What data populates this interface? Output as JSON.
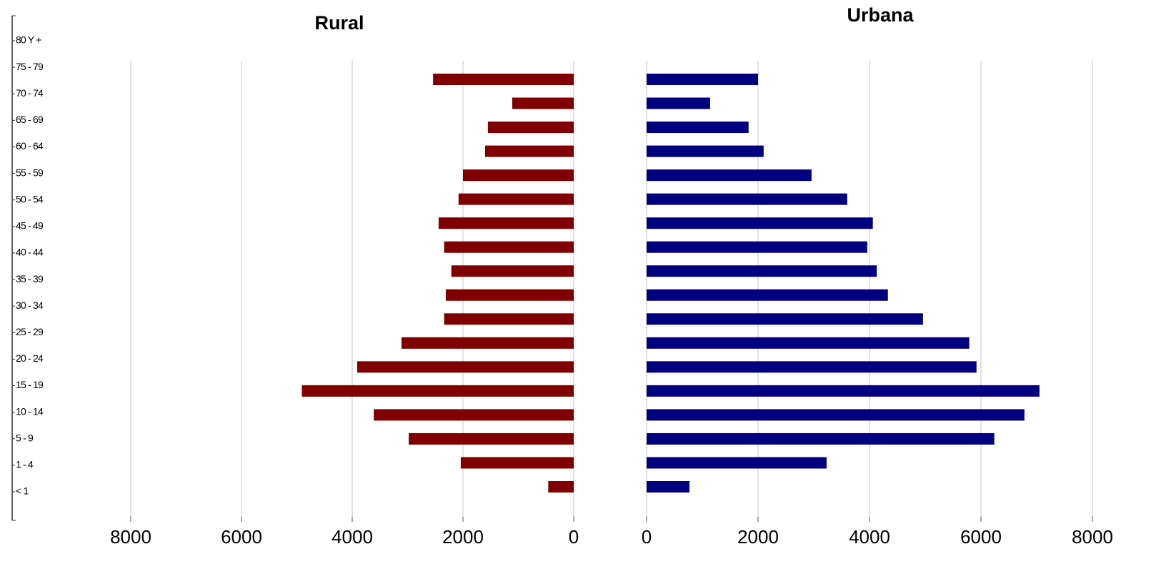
{
  "chart_data": [
    {
      "type": "bar",
      "orientation": "horizontal",
      "title": "Rural",
      "color": "#800000",
      "categories": [
        "80 Y +",
        "75 - 79",
        "70 - 74",
        "65 - 69",
        "60 - 64",
        "55 - 59",
        "50 - 54",
        "45 - 49",
        "40 - 44",
        "35 - 39",
        "30 - 34",
        "25 - 29",
        "20 - 24",
        "15 - 19",
        "10 - 14",
        "5 - 9",
        "1 - 4",
        "< 1"
      ],
      "values": [
        2540,
        1110,
        1550,
        1600,
        2000,
        2080,
        2440,
        2340,
        2210,
        2310,
        2340,
        3110,
        3910,
        4910,
        3610,
        2980,
        2040,
        460
      ],
      "xlim": [
        8000,
        0
      ],
      "xticks": [
        8000,
        6000,
        4000,
        2000,
        0
      ],
      "grid": true
    },
    {
      "type": "bar",
      "orientation": "horizontal",
      "title": "Urbana",
      "color": "#000080",
      "values": [
        2000,
        1140,
        1830,
        2100,
        2960,
        3600,
        4060,
        3960,
        4130,
        4330,
        4960,
        5790,
        5920,
        7050,
        6780,
        6240,
        3230,
        770
      ],
      "xlim": [
        0,
        8000
      ],
      "xticks": [
        0,
        2000,
        4000,
        6000,
        8000
      ],
      "grid": true
    }
  ]
}
